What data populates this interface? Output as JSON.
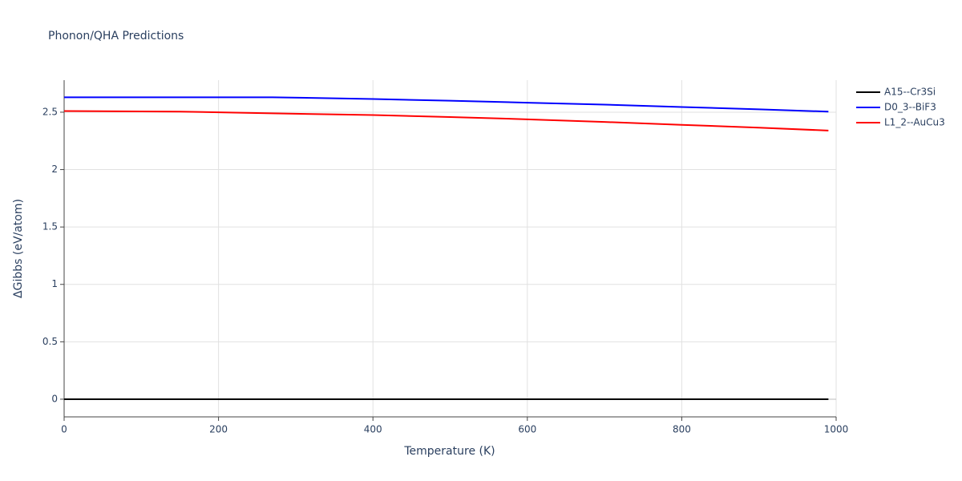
{
  "chart_data": {
    "type": "line",
    "title": "Phonon/QHA Predictions",
    "x_label": "Temperature (K)",
    "y_label": "ΔGibbs (eV/atom)",
    "x": [
      0,
      150,
      270,
      400,
      500,
      600,
      700,
      800,
      900,
      990
    ],
    "series": [
      {
        "name": "A15--Cr3Si",
        "color": "#000000",
        "values": [
          0,
          0,
          0,
          0,
          0,
          0,
          0,
          0,
          0,
          0
        ]
      },
      {
        "name": "D0_3--BiF3",
        "color": "#0000ff",
        "values": [
          2.63,
          2.63,
          2.63,
          2.615,
          2.6,
          2.583,
          2.566,
          2.545,
          2.525,
          2.505
        ]
      },
      {
        "name": "L1_2--AuCu3",
        "color": "#ff0000",
        "values": [
          2.51,
          2.505,
          2.49,
          2.475,
          2.458,
          2.438,
          2.415,
          2.39,
          2.365,
          2.34
        ]
      }
    ],
    "xlim": [
      0,
      1000
    ],
    "xticks": [
      0,
      200,
      400,
      600,
      800,
      1000
    ],
    "ylim": [
      -0.154,
      2.779
    ],
    "yticks": [
      0,
      0.5,
      1,
      1.5,
      2,
      2.5
    ],
    "grid": true,
    "legend": "right"
  }
}
